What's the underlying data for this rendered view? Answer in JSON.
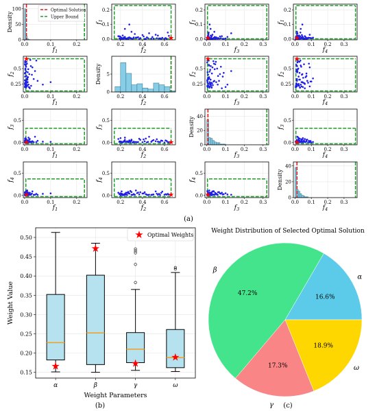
{
  "colors": {
    "points": "#1f1fe6",
    "hist_fill": "#87cde6",
    "hist_edge": "#2a6f86",
    "optimal": "#e01b1b",
    "bound": "#1e9e2a",
    "box_fill": "#b5e2ee",
    "median": "#f0a020",
    "star": "#ff0000",
    "pie": [
      "#5ccbea",
      "#44e48c",
      "#f98587",
      "#ffd700"
    ]
  },
  "chart_data": [
    {
      "type": "scatter",
      "subtype": "pairs-matrix",
      "caption": "(a)",
      "variables": [
        "f1",
        "f2",
        "f3",
        "f4"
      ],
      "axis_label_text": [
        "f",
        "f",
        "f",
        "f"
      ],
      "axis_label_sub": [
        "1",
        "2",
        "3",
        "4"
      ],
      "diag_ylabel": "Density",
      "legend": {
        "optimal": "Optimal Solution",
        "bound": "Upper Bound"
      },
      "ranges": [
        [
          -0.005,
          0.24
        ],
        [
          0.12,
          0.7
        ],
        [
          -0.01,
          0.33
        ],
        [
          -0.01,
          0.38
        ]
      ],
      "ticks": [
        {
          "values": [
            0.0,
            0.1,
            0.2
          ],
          "labels": [
            "0.0",
            "0.1",
            "0.2"
          ]
        },
        {
          "values": [
            0.2,
            0.4,
            0.6
          ],
          "labels": [
            "0.2",
            "0.4",
            "0.6"
          ]
        },
        {
          "values": [
            0.0,
            0.1,
            0.2,
            0.3
          ],
          "labels": [
            "0.0",
            "0.1",
            "0.2",
            "0.3"
          ]
        },
        {
          "values": [
            0.0,
            0.1,
            0.2,
            0.3
          ],
          "labels": [
            "0.0",
            "0.1",
            "0.2",
            "0.3"
          ]
        }
      ],
      "y_ticks": [
        {
          "values": [
            0.0,
            0.1,
            0.2
          ],
          "labels": [
            "0.0",
            "0.1",
            "0.2"
          ]
        },
        {
          "values": [
            0.25,
            0.5
          ],
          "labels": [
            "0.25",
            "0.5"
          ]
        },
        {
          "values": [
            0.0,
            0.5
          ],
          "labels": [
            "0.0",
            "0.5"
          ]
        },
        {
          "values": [
            0.0,
            0.5
          ],
          "labels": [
            "0.0",
            "0.5"
          ]
        }
      ],
      "y_ranges": [
        [
          -0.005,
          0.24
        ],
        [
          0.12,
          0.7
        ],
        [
          -0.05,
          0.75
        ],
        [
          -0.05,
          0.75
        ]
      ],
      "upper_bound": [
        0.23,
        0.66,
        0.32,
        0.37
      ],
      "optimal": [
        0.007,
        0.66,
        0.006,
        0.012
      ],
      "diag": [
        {
          "ylim": [
            0,
            115
          ],
          "yticks": [
            0,
            50,
            100
          ],
          "bins": [
            [
              0.0,
              0.005,
              100
            ],
            [
              0.005,
              0.01,
              12
            ],
            [
              0.01,
              0.015,
              3
            ],
            [
              0.015,
              0.02,
              1
            ]
          ]
        },
        {
          "ylim": [
            0,
            10
          ],
          "yticks": [
            0,
            5
          ],
          "bins": [
            [
              0.15,
              0.2,
              1.5
            ],
            [
              0.2,
              0.25,
              8.2
            ],
            [
              0.25,
              0.3,
              5.2
            ],
            [
              0.3,
              0.35,
              2.0
            ],
            [
              0.35,
              0.4,
              2.3
            ],
            [
              0.4,
              0.45,
              1.1
            ],
            [
              0.45,
              0.5,
              0.8
            ],
            [
              0.5,
              0.55,
              2.5
            ],
            [
              0.55,
              0.6,
              2.0
            ],
            [
              0.6,
              0.65,
              1.5
            ],
            [
              0.65,
              0.7,
              0.3
            ]
          ]
        },
        {
          "ylim": [
            0,
            50
          ],
          "yticks": [
            0,
            20,
            40
          ],
          "bins": [
            [
              0.0,
              0.01,
              35
            ],
            [
              0.01,
              0.02,
              10
            ],
            [
              0.02,
              0.03,
              9
            ],
            [
              0.03,
              0.04,
              6
            ],
            [
              0.04,
              0.05,
              4
            ],
            [
              0.05,
              0.06,
              3
            ],
            [
              0.06,
              0.07,
              3
            ],
            [
              0.07,
              0.08,
              1
            ],
            [
              0.08,
              0.09,
              1
            ],
            [
              0.09,
              0.1,
              1
            ]
          ]
        },
        {
          "ylim": [
            0,
            45
          ],
          "yticks": [
            0,
            20,
            40
          ],
          "bins": [
            [
              0.0,
              0.01,
              38
            ],
            [
              0.01,
              0.02,
              10
            ],
            [
              0.02,
              0.03,
              8
            ],
            [
              0.03,
              0.04,
              5
            ],
            [
              0.04,
              0.05,
              3
            ],
            [
              0.05,
              0.06,
              2
            ],
            [
              0.06,
              0.07,
              1
            ],
            [
              0.07,
              0.08,
              1
            ]
          ]
        }
      ],
      "points": [
        [
          0.002,
          0.21,
          0.006,
          0.011
        ],
        [
          0.004,
          0.25,
          0.01,
          0.022
        ],
        [
          0.003,
          0.22,
          0.003,
          0.006
        ],
        [
          0.008,
          0.32,
          0.02,
          0.03
        ],
        [
          0.012,
          0.28,
          0.05,
          0.04
        ],
        [
          0.006,
          0.45,
          0.015,
          0.008
        ],
        [
          0.02,
          0.18,
          0.08,
          0.06
        ],
        [
          0.03,
          0.52,
          0.03,
          0.09
        ],
        [
          0.002,
          0.6,
          0.002,
          0.015
        ],
        [
          0.01,
          0.35,
          0.006,
          0.05
        ],
        [
          0.015,
          0.24,
          0.11,
          0.02
        ],
        [
          0.05,
          0.3,
          0.04,
          0.012
        ],
        [
          0.004,
          0.55,
          0.012,
          0.035
        ],
        [
          0.001,
          0.2,
          0.025,
          0.004
        ],
        [
          0.007,
          0.38,
          0.06,
          0.07
        ],
        [
          0.025,
          0.22,
          0.008,
          0.025
        ],
        [
          0.003,
          0.48,
          0.018,
          0.01
        ],
        [
          0.009,
          0.27,
          0.004,
          0.08
        ],
        [
          0.002,
          0.62,
          0.035,
          0.018
        ],
        [
          0.018,
          0.41,
          0.07,
          0.045
        ],
        [
          0.005,
          0.19,
          0.014,
          0.03
        ],
        [
          0.035,
          0.33,
          0.009,
          0.012
        ],
        [
          0.001,
          0.57,
          0.045,
          0.055
        ],
        [
          0.011,
          0.23,
          0.022,
          0.007
        ],
        [
          0.006,
          0.29,
          0.003,
          0.1
        ],
        [
          0.002,
          0.43,
          0.09,
          0.028
        ],
        [
          0.008,
          0.21,
          0.016,
          0.04
        ],
        [
          0.022,
          0.64,
          0.006,
          0.016
        ],
        [
          0.004,
          0.26,
          0.028,
          0.009
        ],
        [
          0.013,
          0.36,
          0.012,
          0.065
        ],
        [
          0.003,
          0.5,
          0.055,
          0.02
        ],
        [
          0.07,
          0.24,
          0.02,
          0.035
        ],
        [
          0.001,
          0.31,
          0.002,
          0.012
        ],
        [
          0.009,
          0.58,
          0.038,
          0.085
        ],
        [
          0.005,
          0.22,
          0.008,
          0.024
        ],
        [
          0.04,
          0.46,
          0.13,
          0.015
        ],
        [
          0.002,
          0.27,
          0.024,
          0.05
        ],
        [
          0.016,
          0.2,
          0.005,
          0.006
        ],
        [
          0.006,
          0.53,
          0.075,
          0.038
        ],
        [
          0.01,
          0.34,
          0.013,
          0.11
        ],
        [
          0.003,
          0.23,
          0.032,
          0.019
        ],
        [
          0.028,
          0.4,
          0.007,
          0.042
        ],
        [
          0.007,
          0.61,
          0.048,
          0.027
        ],
        [
          0.001,
          0.25,
          0.017,
          0.06
        ],
        [
          0.012,
          0.44,
          0.004,
          0.014
        ],
        [
          0.004,
          0.3,
          0.065,
          0.075
        ],
        [
          0.019,
          0.19,
          0.026,
          0.031
        ],
        [
          0.005,
          0.56,
          0.011,
          0.008
        ],
        [
          0.1,
          0.28,
          0.015,
          0.045
        ],
        [
          0.002,
          0.37,
          0.085,
          0.022
        ],
        [
          0.008,
          0.21,
          0.003,
          0.09
        ],
        [
          0.014,
          0.49,
          0.042,
          0.017
        ],
        [
          0.003,
          0.26,
          0.019,
          0.058
        ],
        [
          0.045,
          0.63,
          0.01,
          0.033
        ],
        [
          0.006,
          0.24,
          0.058,
          0.011
        ],
        [
          0.001,
          0.42,
          0.027,
          0.07
        ],
        [
          0.011,
          0.32,
          0.005,
          0.026
        ],
        [
          0.004,
          0.2,
          0.1,
          0.048
        ],
        [
          0.024,
          0.54,
          0.021,
          0.013
        ],
        [
          0.007,
          0.29,
          0.036,
          0.095
        ]
      ]
    },
    {
      "type": "box",
      "caption": "(b)",
      "xlabel": "Weight Parameters",
      "ylabel": "Weight Value",
      "categories": [
        "α",
        "β",
        "γ",
        "ω"
      ],
      "ylim": [
        0.135,
        0.525
      ],
      "yticks": [
        0.15,
        0.2,
        0.25,
        0.3,
        0.35,
        0.4,
        0.45,
        0.5
      ],
      "ytick_labels": [
        "0.15",
        "0.20",
        "0.25",
        "0.30",
        "0.35",
        "0.40",
        "0.45",
        "0.50"
      ],
      "boxes": [
        {
          "whisker_low": 0.151,
          "q1": 0.182,
          "median": 0.227,
          "q3": 0.352,
          "whisker_high": 0.513,
          "outliers": []
        },
        {
          "whisker_low": 0.15,
          "q1": 0.17,
          "median": 0.252,
          "q3": 0.402,
          "whisker_high": 0.485,
          "outliers": []
        },
        {
          "whisker_low": 0.155,
          "q1": 0.175,
          "median": 0.21,
          "q3": 0.253,
          "whisker_high": 0.365,
          "outliers": [
            0.383,
            0.43,
            0.46,
            0.465,
            0.47
          ]
        },
        {
          "whisker_low": 0.152,
          "q1": 0.162,
          "median": 0.188,
          "q3": 0.261,
          "whisker_high": 0.409,
          "outliers": [
            0.418,
            0.422
          ]
        }
      ],
      "optimal_weights": [
        0.166,
        0.472,
        0.173,
        0.189
      ],
      "legend": "Optimal Weights"
    },
    {
      "type": "pie",
      "caption": "(c)",
      "title": "Weight Distribution of Selected Optimal Solution",
      "labels": [
        "α",
        "β",
        "γ",
        "ω"
      ],
      "values": [
        16.6,
        47.2,
        17.3,
        18.9
      ],
      "pct_labels": [
        "16.6%",
        "47.2%",
        "17.3%",
        "18.9%"
      ]
    }
  ]
}
